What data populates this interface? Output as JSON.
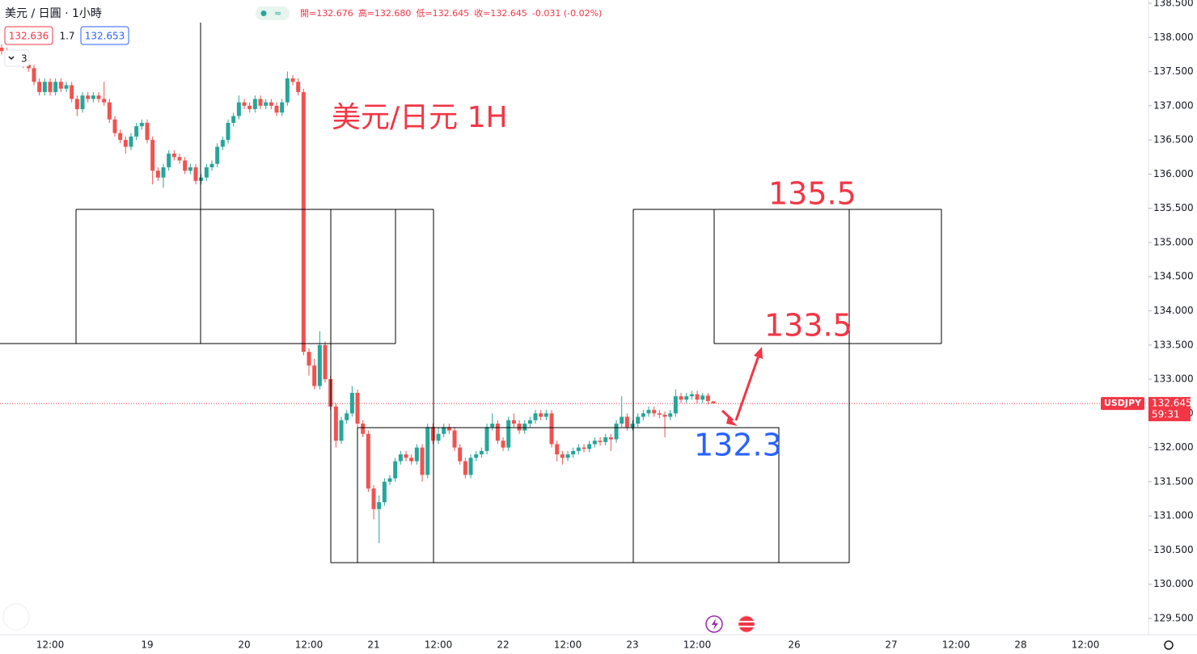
{
  "chart_data": {
    "type": "candlestick",
    "symbol_title": "美元 / 日圓 · 1小時",
    "ohlc_legend": [
      "開=132.676",
      "高=132.680",
      "低=132.645",
      "收=132.645",
      "-0.031 (-0.02%)"
    ],
    "sell_price": "132.636",
    "spread": "1.7",
    "buy_price": "132.653",
    "indicator_count": "3",
    "annotations": [
      "美元/日元 1H",
      "135.5",
      "133.5",
      "132.3"
    ],
    "price_tag": {
      "symbol": "USDJPY",
      "price": "132.645",
      "countdown": "59:31"
    },
    "up_color": "#26a69a",
    "down_color": "#ef5350",
    "ylim": [
      129.5,
      138.5
    ],
    "yticks": [
      {
        "value": 129.5,
        "label": "129.500"
      },
      {
        "value": 130,
        "label": "130.000"
      },
      {
        "value": 130.5,
        "label": "130.500"
      },
      {
        "value": 131,
        "label": "131.000"
      },
      {
        "value": 131.5,
        "label": "131.500"
      },
      {
        "value": 132,
        "label": "132.000"
      },
      {
        "value": 132.5,
        "label": "132.500"
      },
      {
        "value": 133,
        "label": "133.000"
      },
      {
        "value": 133.5,
        "label": "133.500"
      },
      {
        "value": 134,
        "label": "134.000"
      },
      {
        "value": 134.5,
        "label": "134.500"
      },
      {
        "value": 135,
        "label": "135.000"
      },
      {
        "value": 135.5,
        "label": "135.500"
      },
      {
        "value": 136,
        "label": "136.000"
      },
      {
        "value": 136.5,
        "label": "136.500"
      },
      {
        "value": 137,
        "label": "137.000"
      },
      {
        "value": 137.5,
        "label": "137.500"
      },
      {
        "value": 138,
        "label": "138.000"
      },
      {
        "value": 138.5,
        "label": "138.500"
      }
    ],
    "categories": [
      null,
      null,
      null,
      null,
      null,
      null,
      null,
      null,
      null,
      "12:00",
      null,
      null,
      null,
      null,
      null,
      null,
      null,
      null,
      null,
      null,
      null,
      null,
      null,
      null,
      null,
      null,
      null,
      "19",
      null,
      null,
      null,
      null,
      null,
      null,
      null,
      null,
      null,
      null,
      null,
      null,
      null,
      null,
      null,
      null,
      null,
      "20",
      null,
      null,
      null,
      null,
      null,
      null,
      null,
      null,
      null,
      null,
      null,
      "12:00",
      null,
      null,
      null,
      null,
      null,
      null,
      null,
      null,
      null,
      null,
      null,
      "21",
      null,
      null,
      null,
      null,
      null,
      null,
      null,
      null,
      null,
      null,
      null,
      "12:00",
      null,
      null,
      null,
      null,
      null,
      null,
      null,
      null,
      null,
      null,
      null,
      "22",
      null,
      null,
      null,
      null,
      null,
      null,
      null,
      null,
      null,
      null,
      null,
      "12:00",
      null,
      null,
      null,
      null,
      null,
      null,
      null,
      null,
      null,
      null,
      null,
      "23",
      null,
      null,
      null,
      null,
      null,
      null,
      null,
      null,
      null,
      null,
      null,
      "12:00",
      null,
      null,
      null,
      null,
      null,
      null,
      null,
      null,
      null,
      null,
      null,
      null,
      null,
      null,
      null,
      null,
      null,
      "26",
      null,
      null,
      null,
      null,
      null,
      null,
      null,
      null,
      null,
      null,
      null,
      null,
      null,
      null,
      null,
      null,
      null,
      "27",
      null,
      null,
      null,
      null,
      null,
      null,
      null,
      null,
      null,
      null,
      null,
      "12:00",
      null,
      null,
      null,
      null,
      null,
      null,
      null,
      null,
      null,
      null,
      null,
      "28",
      null,
      null,
      null,
      null,
      null,
      null,
      null,
      null,
      null,
      null,
      null,
      "12:00"
    ],
    "candles": [
      [
        137.85,
        137.9,
        137.75,
        137.8
      ],
      [
        137.8,
        137.85,
        137.65,
        137.7
      ],
      [
        137.7,
        137.8,
        137.65,
        137.75
      ],
      [
        137.75,
        137.8,
        137.65,
        137.7
      ],
      [
        137.7,
        137.75,
        137.55,
        137.6
      ],
      [
        137.6,
        137.65,
        137.5,
        137.55
      ],
      [
        137.55,
        137.6,
        137.3,
        137.35
      ],
      [
        137.35,
        137.4,
        137.15,
        137.2
      ],
      [
        137.2,
        137.4,
        137.15,
        137.35
      ],
      [
        137.35,
        137.4,
        137.15,
        137.2
      ],
      [
        137.2,
        137.4,
        137.15,
        137.35
      ],
      [
        137.35,
        137.4,
        137.2,
        137.25
      ],
      [
        137.25,
        137.35,
        137.2,
        137.3
      ],
      [
        137.3,
        137.35,
        137.05,
        137.1
      ],
      [
        137.1,
        137.15,
        136.85,
        136.95
      ],
      [
        136.95,
        137.2,
        136.9,
        137.15
      ],
      [
        137.15,
        137.2,
        137.05,
        137.1
      ],
      [
        137.1,
        137.2,
        137.05,
        137.15
      ],
      [
        137.15,
        137.2,
        137.05,
        137.1
      ],
      [
        137.1,
        137.35,
        137.0,
        137.05
      ],
      [
        137.05,
        137.1,
        136.75,
        136.8
      ],
      [
        136.8,
        136.85,
        136.55,
        136.6
      ],
      [
        136.6,
        136.65,
        136.45,
        136.5
      ],
      [
        136.5,
        136.55,
        136.3,
        136.4
      ],
      [
        136.4,
        136.6,
        136.35,
        136.55
      ],
      [
        136.55,
        136.75,
        136.5,
        136.7
      ],
      [
        136.7,
        136.8,
        136.65,
        136.75
      ],
      [
        136.75,
        136.8,
        136.45,
        136.5
      ],
      [
        136.5,
        136.55,
        135.85,
        136.05
      ],
      [
        136.05,
        136.1,
        135.9,
        135.95
      ],
      [
        135.95,
        136.15,
        135.8,
        136.1
      ],
      [
        136.1,
        136.35,
        136.05,
        136.3
      ],
      [
        136.3,
        136.35,
        136.2,
        136.25
      ],
      [
        136.25,
        136.3,
        136.15,
        136.2
      ],
      [
        136.2,
        136.25,
        136.0,
        136.05
      ],
      [
        136.05,
        136.15,
        136.0,
        136.1
      ],
      [
        136.1,
        136.15,
        135.85,
        135.9
      ],
      [
        135.9,
        136.0,
        135.85,
        135.95
      ],
      [
        135.95,
        136.15,
        135.9,
        136.1
      ],
      [
        136.1,
        136.2,
        136.05,
        136.15
      ],
      [
        136.15,
        136.45,
        136.1,
        136.4
      ],
      [
        136.4,
        136.55,
        136.35,
        136.5
      ],
      [
        136.5,
        136.8,
        136.45,
        136.75
      ],
      [
        136.75,
        136.9,
        136.7,
        136.85
      ],
      [
        136.85,
        137.15,
        136.8,
        137.05
      ],
      [
        137.05,
        137.1,
        136.95,
        137.0
      ],
      [
        137.0,
        137.05,
        136.9,
        136.95
      ],
      [
        136.95,
        137.15,
        136.9,
        137.1
      ],
      [
        137.1,
        137.15,
        136.95,
        137.0
      ],
      [
        137.0,
        137.1,
        136.95,
        137.05
      ],
      [
        137.05,
        137.1,
        136.95,
        137.0
      ],
      [
        137.0,
        137.05,
        136.85,
        136.9
      ],
      [
        136.9,
        137.1,
        136.85,
        137.05
      ],
      [
        137.05,
        137.5,
        137.0,
        137.4
      ],
      [
        137.4,
        137.45,
        137.3,
        137.35
      ],
      [
        137.35,
        137.4,
        137.15,
        137.2
      ],
      [
        137.2,
        137.25,
        133.35,
        133.4
      ],
      [
        133.4,
        133.45,
        133.05,
        133.2
      ],
      [
        133.2,
        133.3,
        132.85,
        132.9
      ],
      [
        132.9,
        133.7,
        132.85,
        133.5
      ],
      [
        133.5,
        133.55,
        132.95,
        133.0
      ],
      [
        133.0,
        133.05,
        132.55,
        132.6
      ],
      [
        132.6,
        132.65,
        132.0,
        132.1
      ],
      [
        132.1,
        132.45,
        132.05,
        132.4
      ],
      [
        132.4,
        132.55,
        132.35,
        132.5
      ],
      [
        132.5,
        132.9,
        132.45,
        132.8
      ],
      [
        132.8,
        132.85,
        132.3,
        132.35
      ],
      [
        132.35,
        132.4,
        132.15,
        132.2
      ],
      [
        132.2,
        132.25,
        131.35,
        131.4
      ],
      [
        131.4,
        131.45,
        130.95,
        131.1
      ],
      [
        131.1,
        131.3,
        130.6,
        131.2
      ],
      [
        131.2,
        131.55,
        131.15,
        131.5
      ],
      [
        131.5,
        131.6,
        131.45,
        131.55
      ],
      [
        131.55,
        131.85,
        131.5,
        131.8
      ],
      [
        131.8,
        131.95,
        131.75,
        131.9
      ],
      [
        131.9,
        131.95,
        131.8,
        131.85
      ],
      [
        131.85,
        131.9,
        131.75,
        131.8
      ],
      [
        131.8,
        132.05,
        131.75,
        132.0
      ],
      [
        132.0,
        132.05,
        131.5,
        131.6
      ],
      [
        131.6,
        132.35,
        131.55,
        132.3
      ],
      [
        132.3,
        132.35,
        132.05,
        132.1
      ],
      [
        132.1,
        132.3,
        132.05,
        132.2
      ],
      [
        132.2,
        132.35,
        132.15,
        132.3
      ],
      [
        132.3,
        132.35,
        132.2,
        132.25
      ],
      [
        132.25,
        132.3,
        131.95,
        132.0
      ],
      [
        132.0,
        132.05,
        131.75,
        131.8
      ],
      [
        131.8,
        131.85,
        131.55,
        131.6
      ],
      [
        131.6,
        131.9,
        131.55,
        131.85
      ],
      [
        131.85,
        131.95,
        131.8,
        131.9
      ],
      [
        131.9,
        132.0,
        131.85,
        131.95
      ],
      [
        131.95,
        132.35,
        131.9,
        132.3
      ],
      [
        132.3,
        132.5,
        132.25,
        132.35
      ],
      [
        132.35,
        132.4,
        132.05,
        132.1
      ],
      [
        132.1,
        132.15,
        131.95,
        132.0
      ],
      [
        132.0,
        132.45,
        131.95,
        132.4
      ],
      [
        132.4,
        132.5,
        132.3,
        132.35
      ],
      [
        132.35,
        132.4,
        132.2,
        132.25
      ],
      [
        132.25,
        132.4,
        132.2,
        132.35
      ],
      [
        132.35,
        132.45,
        132.3,
        132.4
      ],
      [
        132.4,
        132.55,
        132.35,
        132.5
      ],
      [
        132.5,
        132.55,
        132.4,
        132.45
      ],
      [
        132.45,
        132.55,
        132.4,
        132.5
      ],
      [
        132.5,
        132.55,
        132.0,
        132.05
      ],
      [
        132.05,
        132.1,
        131.8,
        131.9
      ],
      [
        131.9,
        131.95,
        131.75,
        131.85
      ],
      [
        131.85,
        131.95,
        131.8,
        131.9
      ],
      [
        131.9,
        132.0,
        131.85,
        131.95
      ],
      [
        131.95,
        132.05,
        131.9,
        132.0
      ],
      [
        132.0,
        132.05,
        131.93,
        131.98
      ],
      [
        131.98,
        132.1,
        131.93,
        132.05
      ],
      [
        132.05,
        132.15,
        132.0,
        132.1
      ],
      [
        132.1,
        132.15,
        132.03,
        132.08
      ],
      [
        132.08,
        132.2,
        132.03,
        132.15
      ],
      [
        132.15,
        132.2,
        131.95,
        132.12
      ],
      [
        132.12,
        132.4,
        132.07,
        132.35
      ],
      [
        132.35,
        132.75,
        132.3,
        132.45
      ],
      [
        132.45,
        132.5,
        132.25,
        132.3
      ],
      [
        132.3,
        132.4,
        132.25,
        132.35
      ],
      [
        132.35,
        132.5,
        132.3,
        132.45
      ],
      [
        132.45,
        132.55,
        132.4,
        132.5
      ],
      [
        132.5,
        132.6,
        132.45,
        132.55
      ],
      [
        132.55,
        132.6,
        132.45,
        132.5
      ],
      [
        132.5,
        132.55,
        132.43,
        132.48
      ],
      [
        132.48,
        132.53,
        132.15,
        132.45
      ],
      [
        132.45,
        132.55,
        132.4,
        132.5
      ],
      [
        132.5,
        132.85,
        132.45,
        132.75
      ],
      [
        132.75,
        132.8,
        132.65,
        132.7
      ],
      [
        132.7,
        132.8,
        132.65,
        132.75
      ],
      [
        132.75,
        132.83,
        132.7,
        132.78
      ],
      [
        132.78,
        132.83,
        132.65,
        132.7
      ],
      [
        132.7,
        132.8,
        132.65,
        132.76
      ],
      [
        132.76,
        132.8,
        132.63,
        132.68
      ],
      [
        132.676,
        132.68,
        132.645,
        132.645
      ],
      null,
      null,
      null,
      null,
      null,
      null,
      null,
      null,
      null,
      null,
      null,
      null,
      null,
      null,
      null,
      null,
      null,
      null,
      null,
      null,
      null,
      null,
      null,
      null,
      null,
      null,
      null,
      null,
      null,
      null,
      null,
      null,
      null,
      null,
      null,
      null,
      null,
      null,
      null,
      null,
      null,
      null,
      null,
      null,
      null,
      null,
      null,
      null,
      null,
      null,
      null,
      null,
      null,
      null,
      null,
      null,
      null,
      null,
      null,
      null,
      null,
      null,
      null,
      null,
      null,
      null,
      null,
      null,
      null
    ]
  }
}
